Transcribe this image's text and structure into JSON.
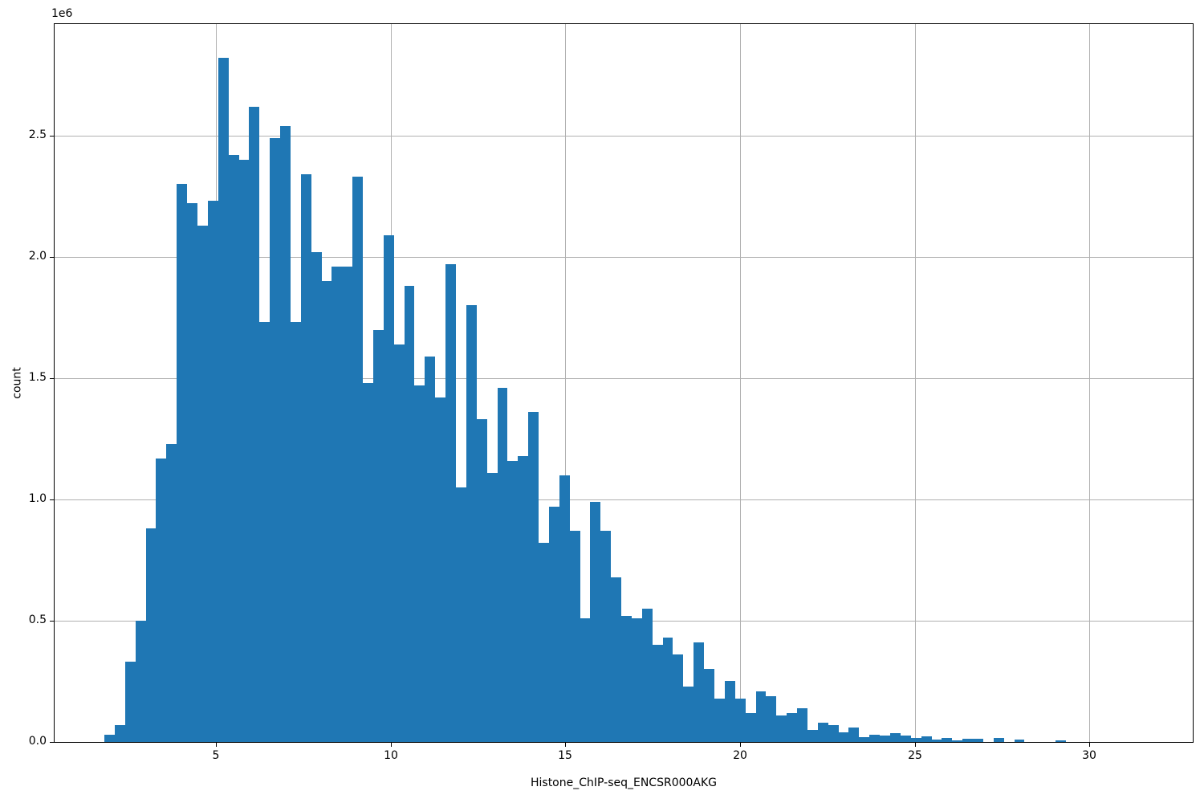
{
  "chart_data": {
    "type": "bar",
    "subtype": "histogram",
    "title": "",
    "xlabel": "Histone_ChIP-seq_ENCSR000AKG",
    "ylabel": "count",
    "y_offset_text": "1e6",
    "grid": true,
    "legend": false,
    "bar_color": "#1f77b4",
    "grid_color": "#b0b0b0",
    "spine_color": "#000000",
    "background_color": "#ffffff",
    "xlim": [
      0.374,
      32.96
    ],
    "ylim": [
      0,
      2960000
    ],
    "xticks": [
      5,
      10,
      15,
      20,
      25,
      30
    ],
    "xtick_labels": [
      "5",
      "10",
      "15",
      "20",
      "25",
      "30"
    ],
    "yticks": [
      0,
      500000,
      1000000,
      1500000,
      2000000,
      2500000
    ],
    "ytick_labels": [
      "0.0",
      "0.5",
      "1.0",
      "1.5",
      "2.0",
      "2.5"
    ],
    "bin_start": 1.8,
    "bin_width": 0.296,
    "counts": [
      30000,
      70000,
      330000,
      500000,
      880000,
      1170000,
      1230000,
      2300000,
      2220000,
      2130000,
      2230000,
      2820000,
      2420000,
      2400000,
      2620000,
      1730000,
      2490000,
      2540000,
      1730000,
      2340000,
      2020000,
      1900000,
      1960000,
      1960000,
      2330000,
      1480000,
      1700000,
      2090000,
      1640000,
      1880000,
      1470000,
      1590000,
      1420000,
      1970000,
      1050000,
      1800000,
      1330000,
      1110000,
      1460000,
      1160000,
      1180000,
      1360000,
      820000,
      970000,
      1100000,
      870000,
      510000,
      990000,
      870000,
      680000,
      520000,
      510000,
      550000,
      400000,
      430000,
      360000,
      230000,
      410000,
      300000,
      180000,
      250000,
      180000,
      120000,
      210000,
      190000,
      110000,
      120000,
      140000,
      50000,
      80000,
      70000,
      40000,
      60000,
      20000,
      30000,
      25000,
      35000,
      28000,
      17000,
      24000,
      11000,
      17000,
      6000,
      13000,
      13000,
      0,
      16000,
      0,
      11000,
      0,
      0,
      0,
      6000,
      0,
      0,
      0,
      0,
      0,
      0,
      0
    ]
  }
}
